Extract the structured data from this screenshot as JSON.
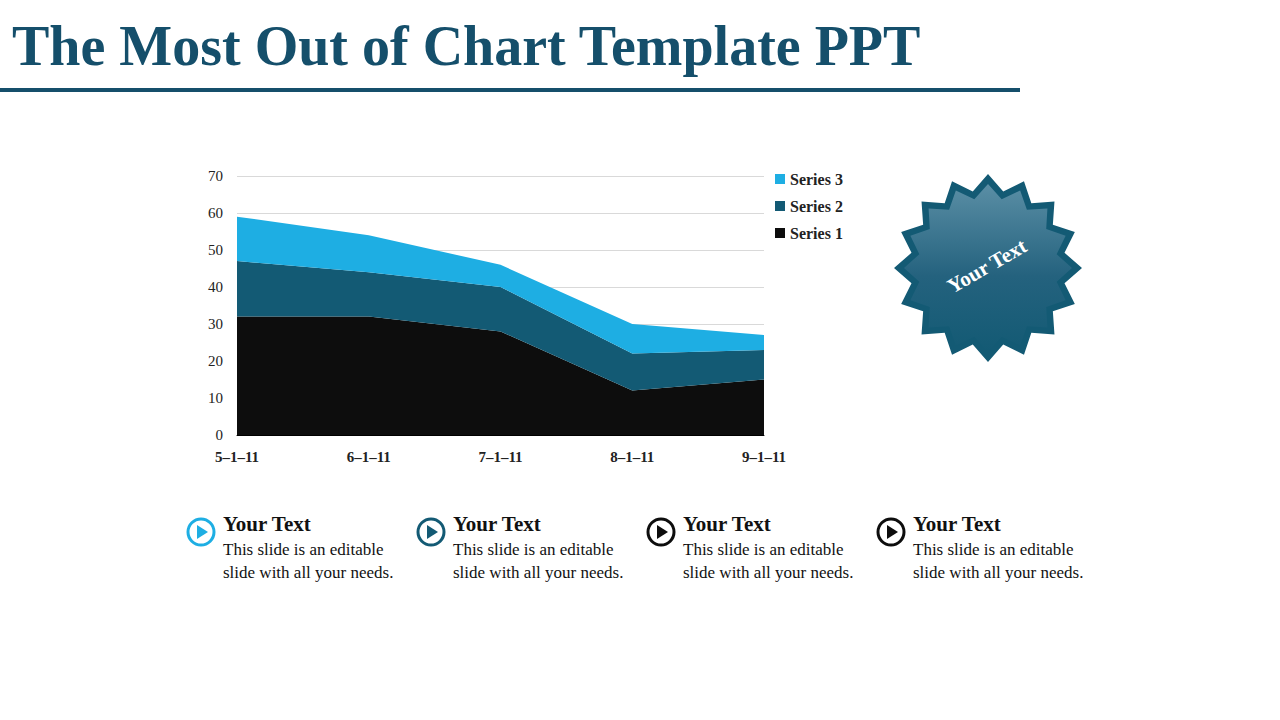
{
  "header": {
    "title": "The Most Out of Chart Template PPT"
  },
  "badge": {
    "text": "Your Text"
  },
  "items": [
    {
      "heading": "Your Text",
      "body": "This slide is an editable slide with all your needs."
    },
    {
      "heading": "Your Text",
      "body": "This slide is an editable slide with all your needs."
    },
    {
      "heading": "Your Text",
      "body": "This slide is an editable slide with all your needs."
    },
    {
      "heading": "Your Text",
      "body": "This slide is an editable slide with all your needs."
    }
  ],
  "chart_data": {
    "type": "area",
    "stacked": true,
    "grid": true,
    "legend": "right",
    "categories": [
      "5–1–11",
      "6–1–11",
      "7–1–11",
      "8–1–11",
      "9–1–11"
    ],
    "series": [
      {
        "name": "Series 1",
        "color": "#0d0d0d",
        "values": [
          32,
          32,
          28,
          12,
          15
        ]
      },
      {
        "name": "Series 2",
        "color": "#135a74",
        "values": [
          15,
          12,
          12,
          10,
          8
        ]
      },
      {
        "name": "Series 3",
        "color": "#1eaee3",
        "values": [
          12,
          10,
          6,
          8,
          4
        ]
      }
    ],
    "ylim": [
      0,
      70
    ],
    "yticks": [
      0,
      10,
      20,
      30,
      40,
      50,
      60,
      70
    ]
  }
}
